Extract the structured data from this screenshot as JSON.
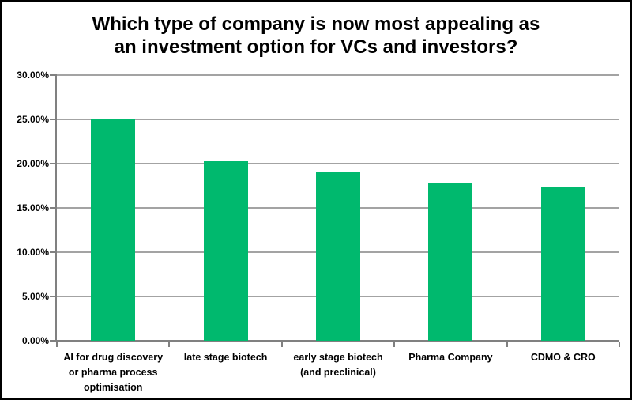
{
  "window": {
    "background": "#FFFFFF",
    "border_color": "#000000"
  },
  "chart_data": {
    "type": "bar",
    "title": "Which type of company is now most appealing as an investment option for VCs and investors?",
    "title_lines": [
      "Which type of company is now most appealing as",
      "an investment option for VCs and investors?"
    ],
    "categories": [
      "AI for drug discovery or pharma process optimisation",
      "late stage biotech",
      "early stage biotech (and preclinical)",
      "Pharma Company",
      "CDMO & CRO"
    ],
    "category_label_lines": [
      [
        "AI for drug discovery",
        "or pharma process",
        "optimisation"
      ],
      [
        "late stage biotech"
      ],
      [
        "early stage biotech",
        "(and preclinical)"
      ],
      [
        "Pharma Company"
      ],
      [
        "CDMO & CRO"
      ]
    ],
    "values": [
      25.0,
      20.3,
      19.1,
      17.9,
      17.4
    ],
    "unit": "percent",
    "xlabel": "",
    "ylabel": "",
    "ylim": [
      0,
      30
    ],
    "ytick_step": 5,
    "ytick_labels": [
      "0.00%",
      "5.00%",
      "10.00%",
      "15.00%",
      "20.00%",
      "25.00%",
      "30.00%"
    ],
    "grid": true,
    "legend": "none",
    "colors": {
      "bar": "#00B96E",
      "gridline": "#A3A3A3",
      "axis": "#808080",
      "text": "#000000"
    }
  }
}
